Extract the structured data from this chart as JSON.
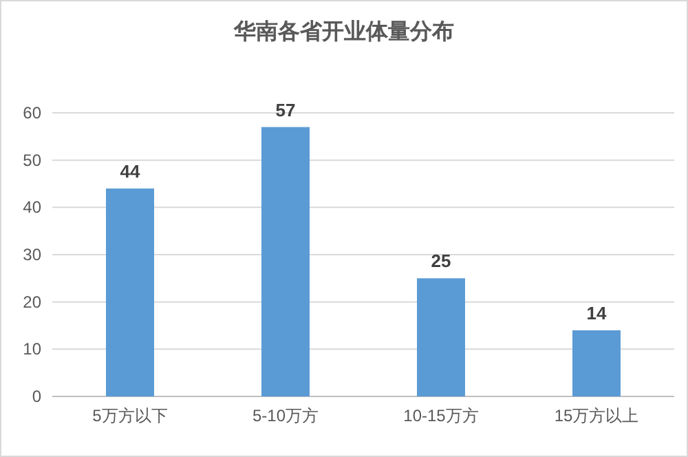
{
  "chart_data": {
    "type": "bar",
    "title": "华南各省开业体量分布",
    "categories": [
      "5万方以下",
      "5-10万方",
      "10-15万方",
      "15万方以上"
    ],
    "values": [
      44,
      57,
      25,
      14
    ],
    "color": "#5b9bd5",
    "ylim": [
      0,
      60
    ],
    "yticks": [
      0,
      10,
      20,
      30,
      40,
      50,
      60
    ],
    "grid": "y",
    "data_labels": true
  }
}
